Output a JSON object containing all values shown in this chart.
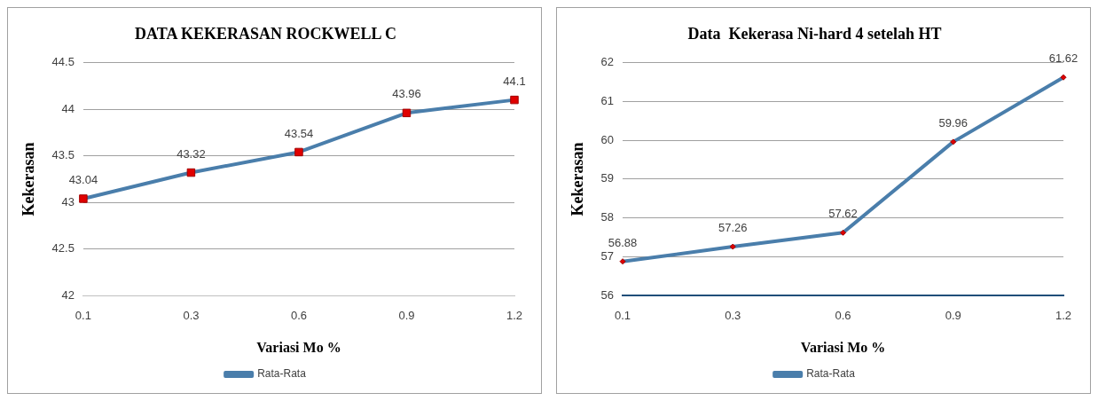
{
  "chart_data": [
    {
      "type": "line",
      "title": "DATA KEKERASAN ROCKWELL C",
      "xlabel": "Variasi Mo %",
      "ylabel": "Kekerasan",
      "categories": [
        "0.1",
        "0.3",
        "0.6",
        "0.9",
        "1.2"
      ],
      "series": [
        {
          "name": "Rata-Rata",
          "color": "#4a7eab",
          "values": [
            43.04,
            43.32,
            43.54,
            43.96,
            44.1
          ]
        }
      ],
      "ylim": [
        42,
        44.5
      ],
      "yticks": [
        42,
        42.5,
        43,
        43.5,
        44,
        44.5
      ],
      "grid": "y",
      "legend": "bottom",
      "marker": "square",
      "data_labels": true
    },
    {
      "type": "line",
      "title": "Data  Kekerasa Ni-hard 4 setelah HT",
      "xlabel": "Variasi Mo %",
      "ylabel": "Kekerasan",
      "categories": [
        "0.1",
        "0.3",
        "0.6",
        "0.9",
        "1.2"
      ],
      "series": [
        {
          "name": "Rata-Rata",
          "color": "#4a7eab",
          "values": [
            56.88,
            57.26,
            57.62,
            59.96,
            61.62
          ]
        }
      ],
      "ylim": [
        56,
        62
      ],
      "yticks": [
        56,
        57,
        58,
        59,
        60,
        61,
        62
      ],
      "grid": "y",
      "legend": "bottom",
      "marker": "diamond",
      "data_labels": true
    }
  ]
}
